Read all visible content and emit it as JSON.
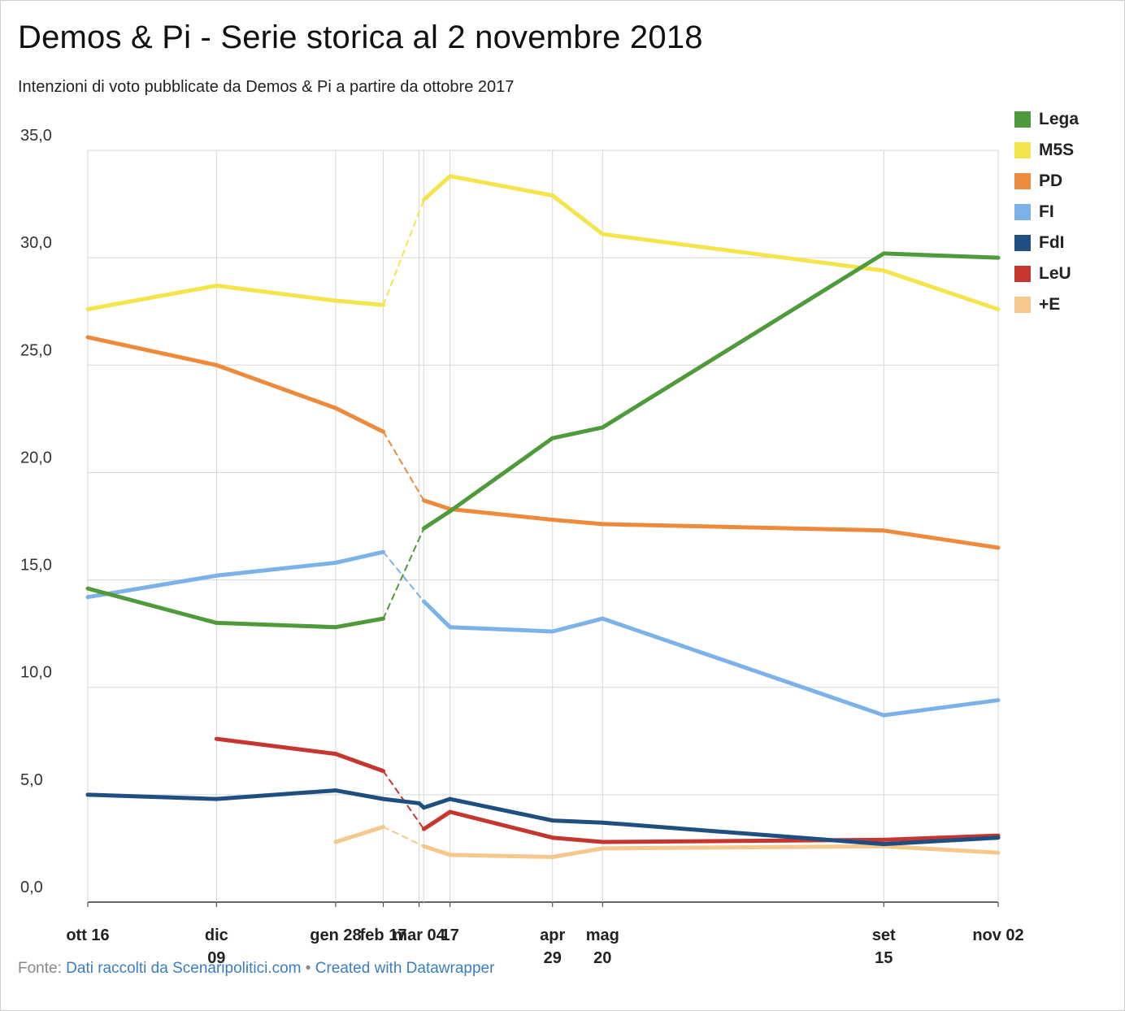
{
  "header": {
    "title": "Demos & Pi - Serie storica al 2 novembre 2018",
    "subtitle": "Intenzioni di voto pubblicate da Demos & Pi a partire da ottobre 2017"
  },
  "footer": {
    "prefix": "Fonte:",
    "source_link": "Dati raccolti da Scenaripolitici.com",
    "separator": "•",
    "credit_link": "Created with Datawrapper"
  },
  "chart_data": {
    "type": "line",
    "title": "Demos & Pi - Serie storica al 2 novembre 2018",
    "subtitle": "Intenzioni di voto pubblicate da Demos & Pi a partire da ottobre 2017",
    "xlabel": "",
    "ylabel": "",
    "ylim": [
      0,
      35
    ],
    "yticks": [
      "0,0",
      "5,0",
      "10,0",
      "15,0",
      "20,0",
      "25,0",
      "30,0",
      "35,0"
    ],
    "grid": true,
    "legend_position": "right",
    "x_dates": [
      "2017-10-16",
      "2017-12-09",
      "2018-01-28",
      "2018-02-17",
      "2018-03-04",
      "2018-03-06",
      "2018-03-17",
      "2018-04-29",
      "2018-05-20",
      "2018-09-15",
      "2018-11-02"
    ],
    "x_tick_labels": [
      {
        "date": "2017-10-16",
        "lines": [
          "ott 16"
        ]
      },
      {
        "date": "2017-12-09",
        "lines": [
          "dic",
          "09"
        ]
      },
      {
        "date": "2018-01-28",
        "lines": [
          "gen 28"
        ]
      },
      {
        "date": "2018-02-17",
        "lines": [
          "feb 17"
        ]
      },
      {
        "date": "2018-03-04",
        "lines": [
          "mar 04"
        ]
      },
      {
        "date": "2018-03-17",
        "lines": [
          "17"
        ]
      },
      {
        "date": "2018-04-29",
        "lines": [
          "apr",
          "29"
        ]
      },
      {
        "date": "2018-05-20",
        "lines": [
          "mag",
          "20"
        ]
      },
      {
        "date": "2018-09-15",
        "lines": [
          "set",
          "15"
        ]
      },
      {
        "date": "2018-11-02",
        "lines": [
          "nov 02"
        ]
      }
    ],
    "series": [
      {
        "name": "Lega",
        "color": "#4f9a3b",
        "values": [
          14.6,
          13.0,
          12.8,
          13.2,
          null,
          17.4,
          18.2,
          21.6,
          22.1,
          30.2,
          30.0
        ]
      },
      {
        "name": "M5S",
        "color": "#f5e54d",
        "values": [
          27.6,
          28.7,
          28.0,
          27.8,
          null,
          32.7,
          33.8,
          32.9,
          31.1,
          29.4,
          27.6
        ]
      },
      {
        "name": "PD",
        "color": "#ee8a3c",
        "values": [
          26.3,
          25.0,
          23.0,
          21.9,
          null,
          18.7,
          18.3,
          17.8,
          17.6,
          17.3,
          16.5
        ]
      },
      {
        "name": "FI",
        "color": "#7cb2ea",
        "values": [
          14.2,
          15.2,
          15.8,
          16.3,
          null,
          14.0,
          12.8,
          12.6,
          13.2,
          8.7,
          9.4
        ]
      },
      {
        "name": "FdI",
        "color": "#1f4e80",
        "values": [
          5.0,
          4.8,
          5.2,
          4.8,
          4.6,
          4.4,
          4.8,
          3.8,
          3.7,
          2.7,
          3.0
        ]
      },
      {
        "name": "LeU",
        "color": "#c6362f",
        "values": [
          null,
          7.6,
          6.9,
          6.1,
          null,
          3.4,
          4.2,
          3.0,
          2.8,
          2.9,
          3.1
        ]
      },
      {
        "name": "+E",
        "color": "#f6c88d",
        "values": [
          null,
          null,
          2.8,
          3.5,
          null,
          2.6,
          2.2,
          2.1,
          2.5,
          2.6,
          2.3
        ]
      }
    ]
  }
}
